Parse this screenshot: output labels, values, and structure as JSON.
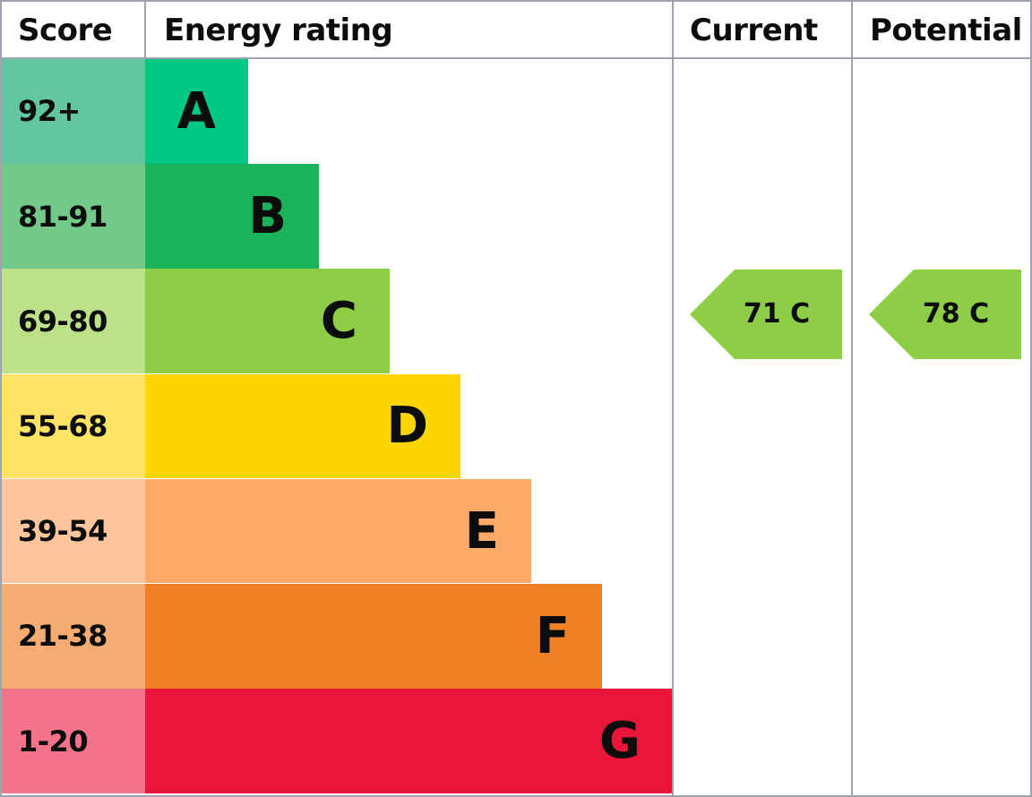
{
  "chart_data": {
    "type": "bar",
    "headers": {
      "score": "Score",
      "rating": "Energy rating",
      "current": "Current",
      "potential": "Potential"
    },
    "bands": [
      {
        "letter": "A",
        "range": "92+",
        "bar_color": "#00c781",
        "score_color": "#62c6a1"
      },
      {
        "letter": "B",
        "range": "81-91",
        "bar_color": "#1bb35a",
        "score_color": "#73c98a"
      },
      {
        "letter": "C",
        "range": "69-80",
        "bar_color": "#8dce46",
        "score_color": "#bce189"
      },
      {
        "letter": "D",
        "range": "55-68",
        "bar_color": "#ffd500",
        "score_color": "#ffe366"
      },
      {
        "letter": "E",
        "range": "39-54",
        "bar_color": "#fcaa65",
        "score_color": "#fdc59b"
      },
      {
        "letter": "F",
        "range": "21-38",
        "bar_color": "#ef8023",
        "score_color": "#f4ac73"
      },
      {
        "letter": "G",
        "range": "1-20",
        "bar_color": "#e9153b",
        "score_color": "#f2738a"
      }
    ],
    "current": {
      "value": 71,
      "band": "C",
      "label": "71 C",
      "color": "#8dce46"
    },
    "potential": {
      "value": 78,
      "band": "C",
      "label": "78 C",
      "color": "#8dce46"
    }
  }
}
